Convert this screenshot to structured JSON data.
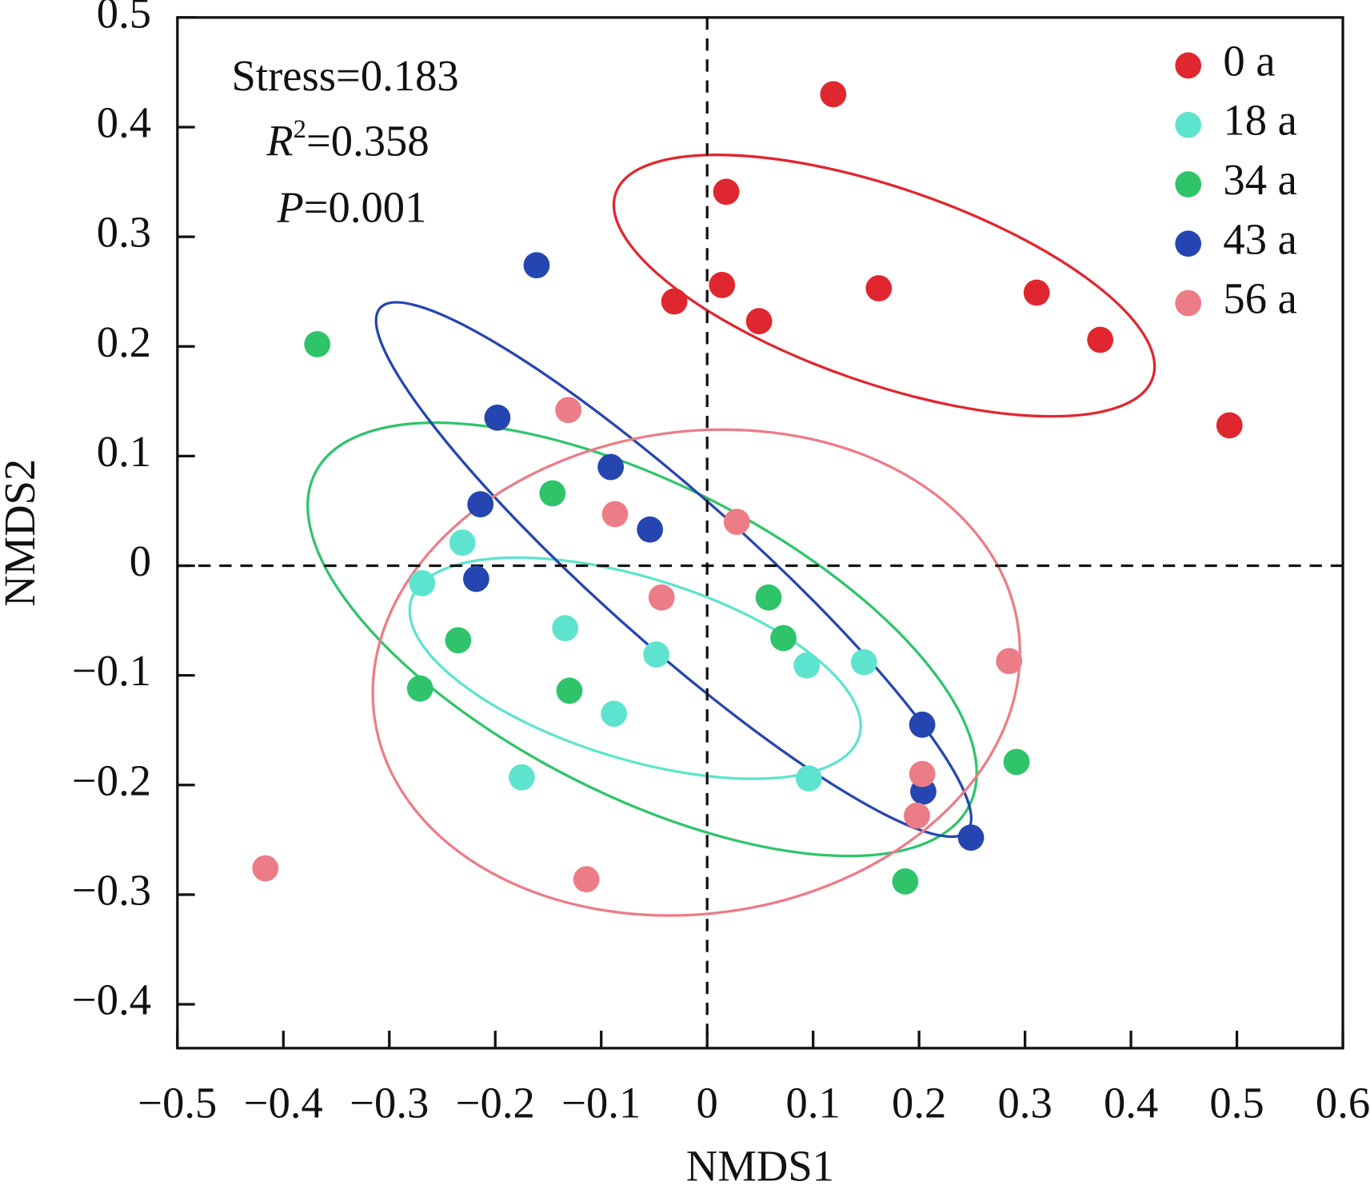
{
  "chart_data": {
    "type": "scatter",
    "xlabel": "NMDS1",
    "ylabel": "NMDS2",
    "annotations": {
      "stress": "Stress=0.183",
      "r2": {
        "symbol": "R",
        "superscript": "2",
        "text": "=0.358"
      },
      "p": {
        "symbol": "P",
        "text": "=0.001"
      }
    },
    "xlim": [
      -0.5,
      0.6
    ],
    "ylim": [
      -0.44,
      0.5
    ],
    "xticks": [
      {
        "value": -0.5,
        "label": "−0.5"
      },
      {
        "value": -0.4,
        "label": "−0.4"
      },
      {
        "value": -0.3,
        "label": "−0.3"
      },
      {
        "value": -0.2,
        "label": "−0.2"
      },
      {
        "value": -0.1,
        "label": "−0.1"
      },
      0,
      0.1,
      0.2,
      0.3,
      0.4,
      0.5,
      0.6
    ],
    "yticks": [
      {
        "value": -0.4,
        "label": "−0.4"
      },
      {
        "value": -0.3,
        "label": "−0.3"
      },
      {
        "value": -0.2,
        "label": "−0.2"
      },
      {
        "value": -0.1,
        "label": "−0.1"
      },
      0,
      0.1,
      0.2,
      0.3,
      0.4,
      0.5
    ],
    "legend": "upper right",
    "series": [
      {
        "name": "0 a",
        "color": "#e0262e",
        "x": [
          0.119,
          0.018,
          -0.031,
          0.014,
          0.049,
          0.162,
          0.311,
          0.371,
          0.493
        ],
        "values": [
          0.43,
          0.341,
          0.241,
          0.256,
          0.223,
          0.253,
          0.249,
          0.206,
          0.128
        ]
      },
      {
        "name": "18 a",
        "color": "#5ee3cf",
        "x": [
          -0.231,
          -0.269,
          -0.134,
          -0.048,
          0.094,
          0.148,
          -0.088,
          -0.175,
          0.096
        ],
        "values": [
          0.021,
          -0.016,
          -0.057,
          -0.081,
          -0.091,
          -0.088,
          -0.135,
          -0.193,
          -0.194
        ]
      },
      {
        "name": "34 a",
        "color": "#2fc46a",
        "x": [
          -0.368,
          -0.146,
          0.058,
          0.072,
          -0.235,
          -0.271,
          -0.13,
          0.292,
          0.187
        ],
        "values": [
          0.202,
          0.066,
          -0.029,
          -0.066,
          -0.068,
          -0.112,
          -0.114,
          -0.179,
          -0.288
        ]
      },
      {
        "name": "43 a",
        "color": "#2546b0",
        "x": [
          -0.161,
          -0.198,
          -0.091,
          -0.214,
          -0.054,
          -0.218,
          0.203,
          0.204,
          0.249
        ],
        "values": [
          0.274,
          0.135,
          0.09,
          0.056,
          0.033,
          -0.012,
          -0.145,
          -0.206,
          -0.248
        ]
      },
      {
        "name": "56 a",
        "color": "#ec7c86",
        "x": [
          -0.131,
          -0.087,
          0.028,
          -0.043,
          0.285,
          0.203,
          0.198,
          -0.417,
          -0.114
        ],
        "values": [
          0.142,
          0.047,
          0.04,
          -0.029,
          -0.087,
          -0.19,
          -0.228,
          -0.276,
          -0.286
        ]
      }
    ]
  }
}
